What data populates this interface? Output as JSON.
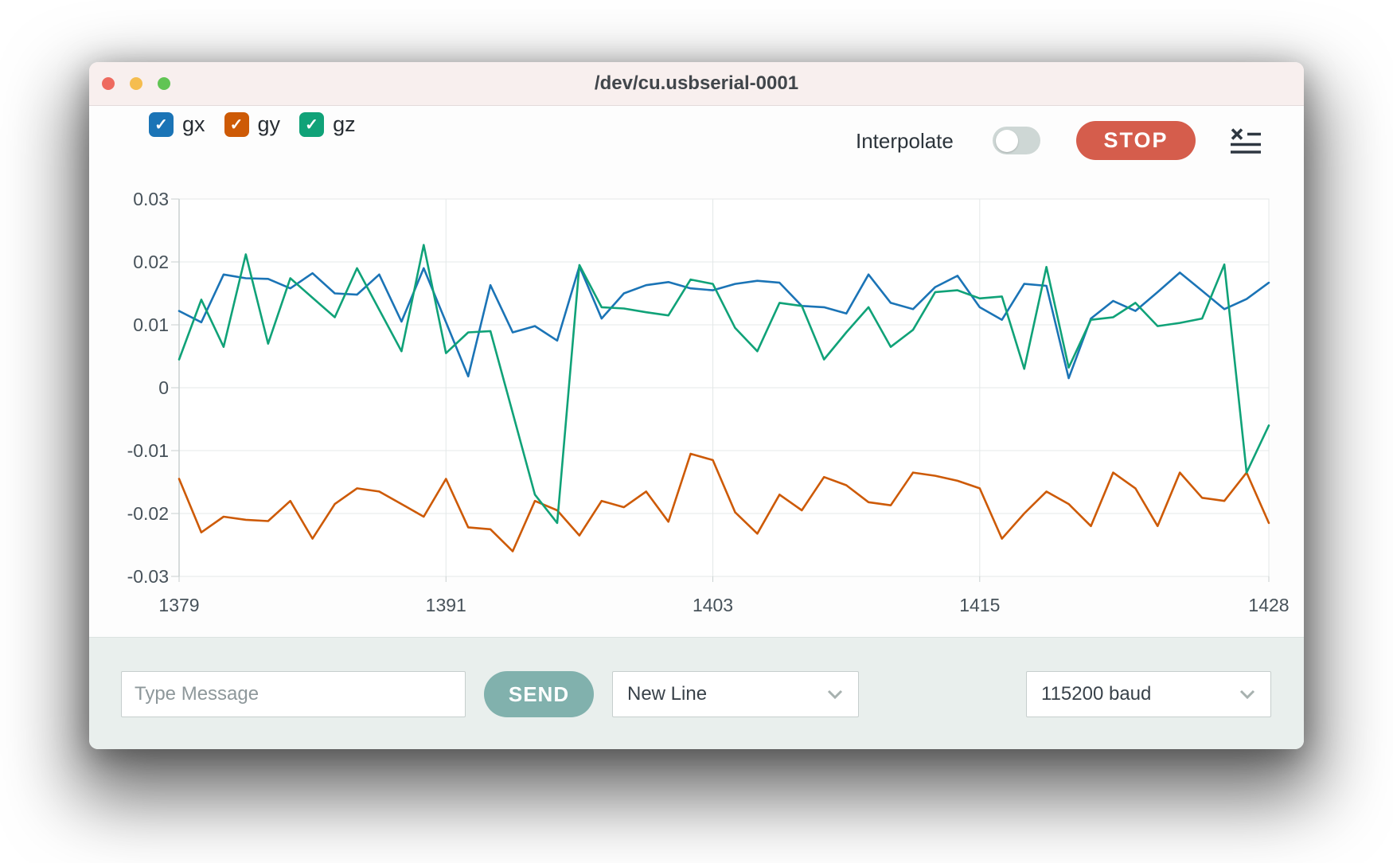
{
  "window": {
    "title": "/dev/cu.usbserial-0001"
  },
  "legend": [
    {
      "label": "gx",
      "color": "#1b74b6",
      "checked": true,
      "check_glyph": "✓"
    },
    {
      "label": "gy",
      "color": "#cd5a06",
      "checked": true,
      "check_glyph": "✓"
    },
    {
      "label": "gz",
      "color": "#10a278",
      "checked": true,
      "check_glyph": "✓"
    }
  ],
  "controls": {
    "interpolate_label": "Interpolate",
    "interpolate_on": false,
    "stop_label": "STOP"
  },
  "chart_data": {
    "type": "line",
    "x_start": 1379,
    "x_ticks": [
      1379,
      1391,
      1403,
      1415,
      1428
    ],
    "y_ticks": [
      0.03,
      0.02,
      0.01,
      0,
      -0.01,
      -0.02,
      -0.03
    ],
    "ylim": [
      -0.03,
      0.03
    ],
    "xlim": [
      1379,
      1428
    ],
    "grid": true,
    "series": [
      {
        "name": "gx",
        "color": "#1b74b6",
        "values": [
          0.0122,
          0.0104,
          0.018,
          0.0174,
          0.0173,
          0.0158,
          0.0182,
          0.015,
          0.0148,
          0.018,
          0.0105,
          0.019,
          0.0104,
          0.0018,
          0.0163,
          0.0088,
          0.0098,
          0.0075,
          0.0193,
          0.011,
          0.015,
          0.0163,
          0.0168,
          0.0158,
          0.0155,
          0.0165,
          0.017,
          0.0167,
          0.013,
          0.0128,
          0.0118,
          0.018,
          0.0135,
          0.0125,
          0.016,
          0.0178,
          0.0128,
          0.0108,
          0.0165,
          0.0162,
          0.0015,
          0.011,
          0.0138,
          0.0122,
          0.0152,
          0.0183,
          0.0154,
          0.0125,
          0.0141,
          0.0167
        ]
      },
      {
        "name": "gy",
        "color": "#cd5a06",
        "values": [
          -0.0145,
          -0.023,
          -0.0205,
          -0.021,
          -0.0212,
          -0.018,
          -0.024,
          -0.0185,
          -0.016,
          -0.0165,
          -0.0185,
          -0.0205,
          -0.0145,
          -0.0222,
          -0.0225,
          -0.026,
          -0.018,
          -0.0195,
          -0.0235,
          -0.018,
          -0.019,
          -0.0165,
          -0.0213,
          -0.0105,
          -0.0115,
          -0.0198,
          -0.0232,
          -0.017,
          -0.0195,
          -0.0142,
          -0.0155,
          -0.0182,
          -0.0187,
          -0.0135,
          -0.014,
          -0.0148,
          -0.016,
          -0.024,
          -0.02,
          -0.0165,
          -0.0185,
          -0.022,
          -0.0135,
          -0.016,
          -0.022,
          -0.0135,
          -0.0175,
          -0.018,
          -0.0135,
          -0.0215
        ]
      },
      {
        "name": "gz",
        "color": "#10a278",
        "values": [
          0.0045,
          0.014,
          0.0065,
          0.0212,
          0.007,
          0.0174,
          0.0143,
          0.0112,
          0.019,
          0.0124,
          0.0058,
          0.0227,
          0.0055,
          0.0088,
          0.009,
          -0.004,
          -0.017,
          -0.0215,
          0.0195,
          0.0128,
          0.0126,
          0.012,
          0.0115,
          0.0172,
          0.0165,
          0.0095,
          0.0058,
          0.0135,
          0.013,
          0.0045,
          0.0088,
          0.0128,
          0.0065,
          0.0092,
          0.0152,
          0.0155,
          0.0142,
          0.0145,
          0.003,
          0.0192,
          0.0032,
          0.0108,
          0.0112,
          0.0135,
          0.0098,
          0.0103,
          0.011,
          0.0196,
          -0.0135,
          -0.006
        ]
      }
    ]
  },
  "composer": {
    "message_placeholder": "Type Message",
    "send_label": "SEND",
    "line_ending_value": "New Line",
    "baud_value": "115200 baud"
  }
}
